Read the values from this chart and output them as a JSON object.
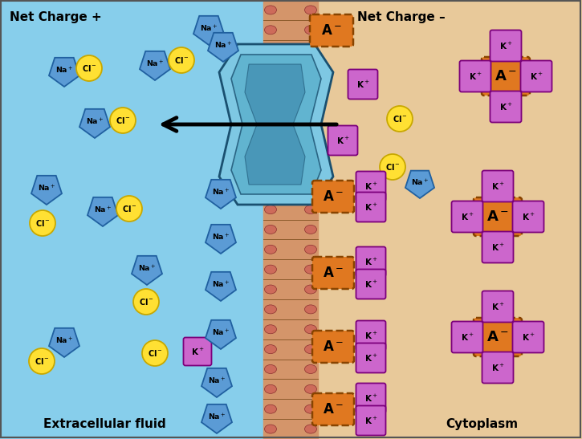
{
  "bg_left": "#87CEEB",
  "bg_right": "#E8C99A",
  "membrane_color": "#D4956A",
  "membrane_line": "#8B5A2B",
  "bead_color": "#CD6B5A",
  "channel_outer": "#7EC8E3",
  "channel_mid": "#5AAFCC",
  "channel_inner": "#4090B0",
  "na_fill": "#5B9BD5",
  "na_edge": "#2060A0",
  "cl_fill": "#FFE033",
  "cl_edge": "#C8A800",
  "k_fill": "#CC66CC",
  "k_edge": "#7B007B",
  "a_fill": "#E07820",
  "a_edge": "#884400",
  "title_left": "Net Charge +",
  "title_right": "Net Charge –",
  "label_left": "Extracellular fluid",
  "label_right": "Cytoplasm",
  "border_color": "#555555",
  "fig_width": 7.25,
  "fig_height": 5.47,
  "fig_dpi": 100
}
